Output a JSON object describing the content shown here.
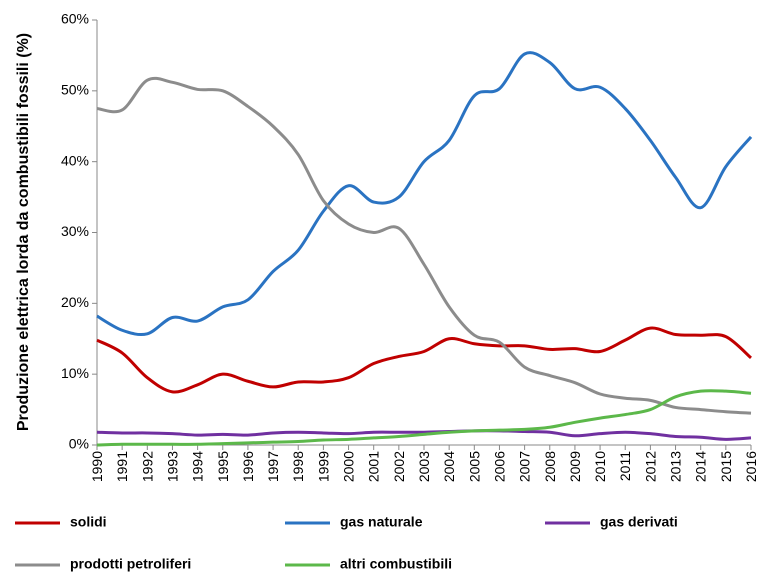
{
  "chart_data": {
    "type": "line",
    "y_label": "Produzione elettrica lorda da combustibili fossili (%)",
    "categories": [
      "1990",
      "1991",
      "1992",
      "1993",
      "1994",
      "1995",
      "1996",
      "1997",
      "1998",
      "1999",
      "2000",
      "2001",
      "2002",
      "2003",
      "2004",
      "2005",
      "2006",
      "2007",
      "2008",
      "2009",
      "2010",
      "2011",
      "2012",
      "2013",
      "2014",
      "2015",
      "2016"
    ],
    "ylim": [
      0,
      60
    ],
    "yticks": [
      {
        "value": 0,
        "label": "0%"
      },
      {
        "value": 10,
        "label": "10%"
      },
      {
        "value": 20,
        "label": "20%"
      },
      {
        "value": 30,
        "label": "30%"
      },
      {
        "value": 40,
        "label": "40%"
      },
      {
        "value": 50,
        "label": "50%"
      },
      {
        "value": 60,
        "label": "60%"
      }
    ],
    "grid": false,
    "smooth": true,
    "series": [
      {
        "name": "solidi",
        "color": "#c00000",
        "values": [
          14.8,
          13,
          9.5,
          7.5,
          8.5,
          10,
          9,
          8.2,
          8.9,
          8.9,
          9.5,
          11.5,
          12.5,
          13.2,
          15,
          14.3,
          14,
          14,
          13.5,
          13.6,
          13.2,
          14.8,
          16.5,
          15.6,
          15.5,
          15.3,
          12.3
        ]
      },
      {
        "name": "gas naturale",
        "color": "#2a73c2",
        "values": [
          18.2,
          16.2,
          15.7,
          18,
          17.5,
          19.5,
          20.5,
          24.5,
          27.5,
          33,
          36.6,
          34.3,
          35,
          40,
          43,
          49.3,
          50.3,
          55.2,
          54,
          50.3,
          50.5,
          47.5,
          43,
          37.8,
          33.5,
          39.3,
          43.5
        ]
      },
      {
        "name": "gas derivati",
        "color": "#7030a0",
        "values": [
          1.8,
          1.7,
          1.7,
          1.6,
          1.4,
          1.5,
          1.4,
          1.7,
          1.8,
          1.7,
          1.6,
          1.8,
          1.8,
          1.8,
          1.9,
          2,
          2,
          1.9,
          1.8,
          1.3,
          1.6,
          1.8,
          1.6,
          1.2,
          1.1,
          0.8,
          1.0
        ]
      },
      {
        "name": "prodotti petroliferi",
        "color": "#8c8c8c",
        "values": [
          47.5,
          47.3,
          51.5,
          51.2,
          50.2,
          50,
          47.8,
          45,
          41,
          34.5,
          31.2,
          30,
          30.6,
          25.5,
          19.5,
          15.5,
          14.5,
          11,
          9.8,
          8.8,
          7.2,
          6.6,
          6.3,
          5.3,
          5,
          4.7,
          4.5
        ]
      },
      {
        "name": "altri combustibili",
        "color": "#5cb84a",
        "values": [
          0,
          0.1,
          0.1,
          0.1,
          0.1,
          0.2,
          0.3,
          0.4,
          0.5,
          0.7,
          0.8,
          1,
          1.2,
          1.5,
          1.8,
          2,
          2.1,
          2.2,
          2.5,
          3.2,
          3.8,
          4.3,
          5,
          6.8,
          7.6,
          7.6,
          7.3
        ]
      }
    ]
  }
}
